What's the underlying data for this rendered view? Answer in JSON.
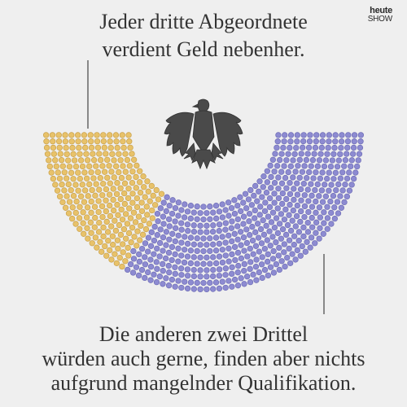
{
  "logo": {
    "line1": "heute",
    "line2": "SHOW"
  },
  "headline": {
    "lines": [
      "Jeder dritte Abgeordnete",
      "verdient Geld nebenher."
    ]
  },
  "caption": {
    "lines": [
      "Die anderen zwei Drittel",
      "würden auch gerne, finden aber nichts",
      "aufgrund mangelnder Qualifikation."
    ]
  },
  "chart_data": {
    "type": "parliament",
    "series": [
      {
        "fraction": 0.333,
        "color": "#e8c26a",
        "stroke": "#c9a14a"
      },
      {
        "fraction": 0.667,
        "color": "#8d8bd1",
        "stroke": "#6e6cb6"
      }
    ]
  },
  "icons": {
    "emblem": "bundestag-eagle-icon"
  }
}
